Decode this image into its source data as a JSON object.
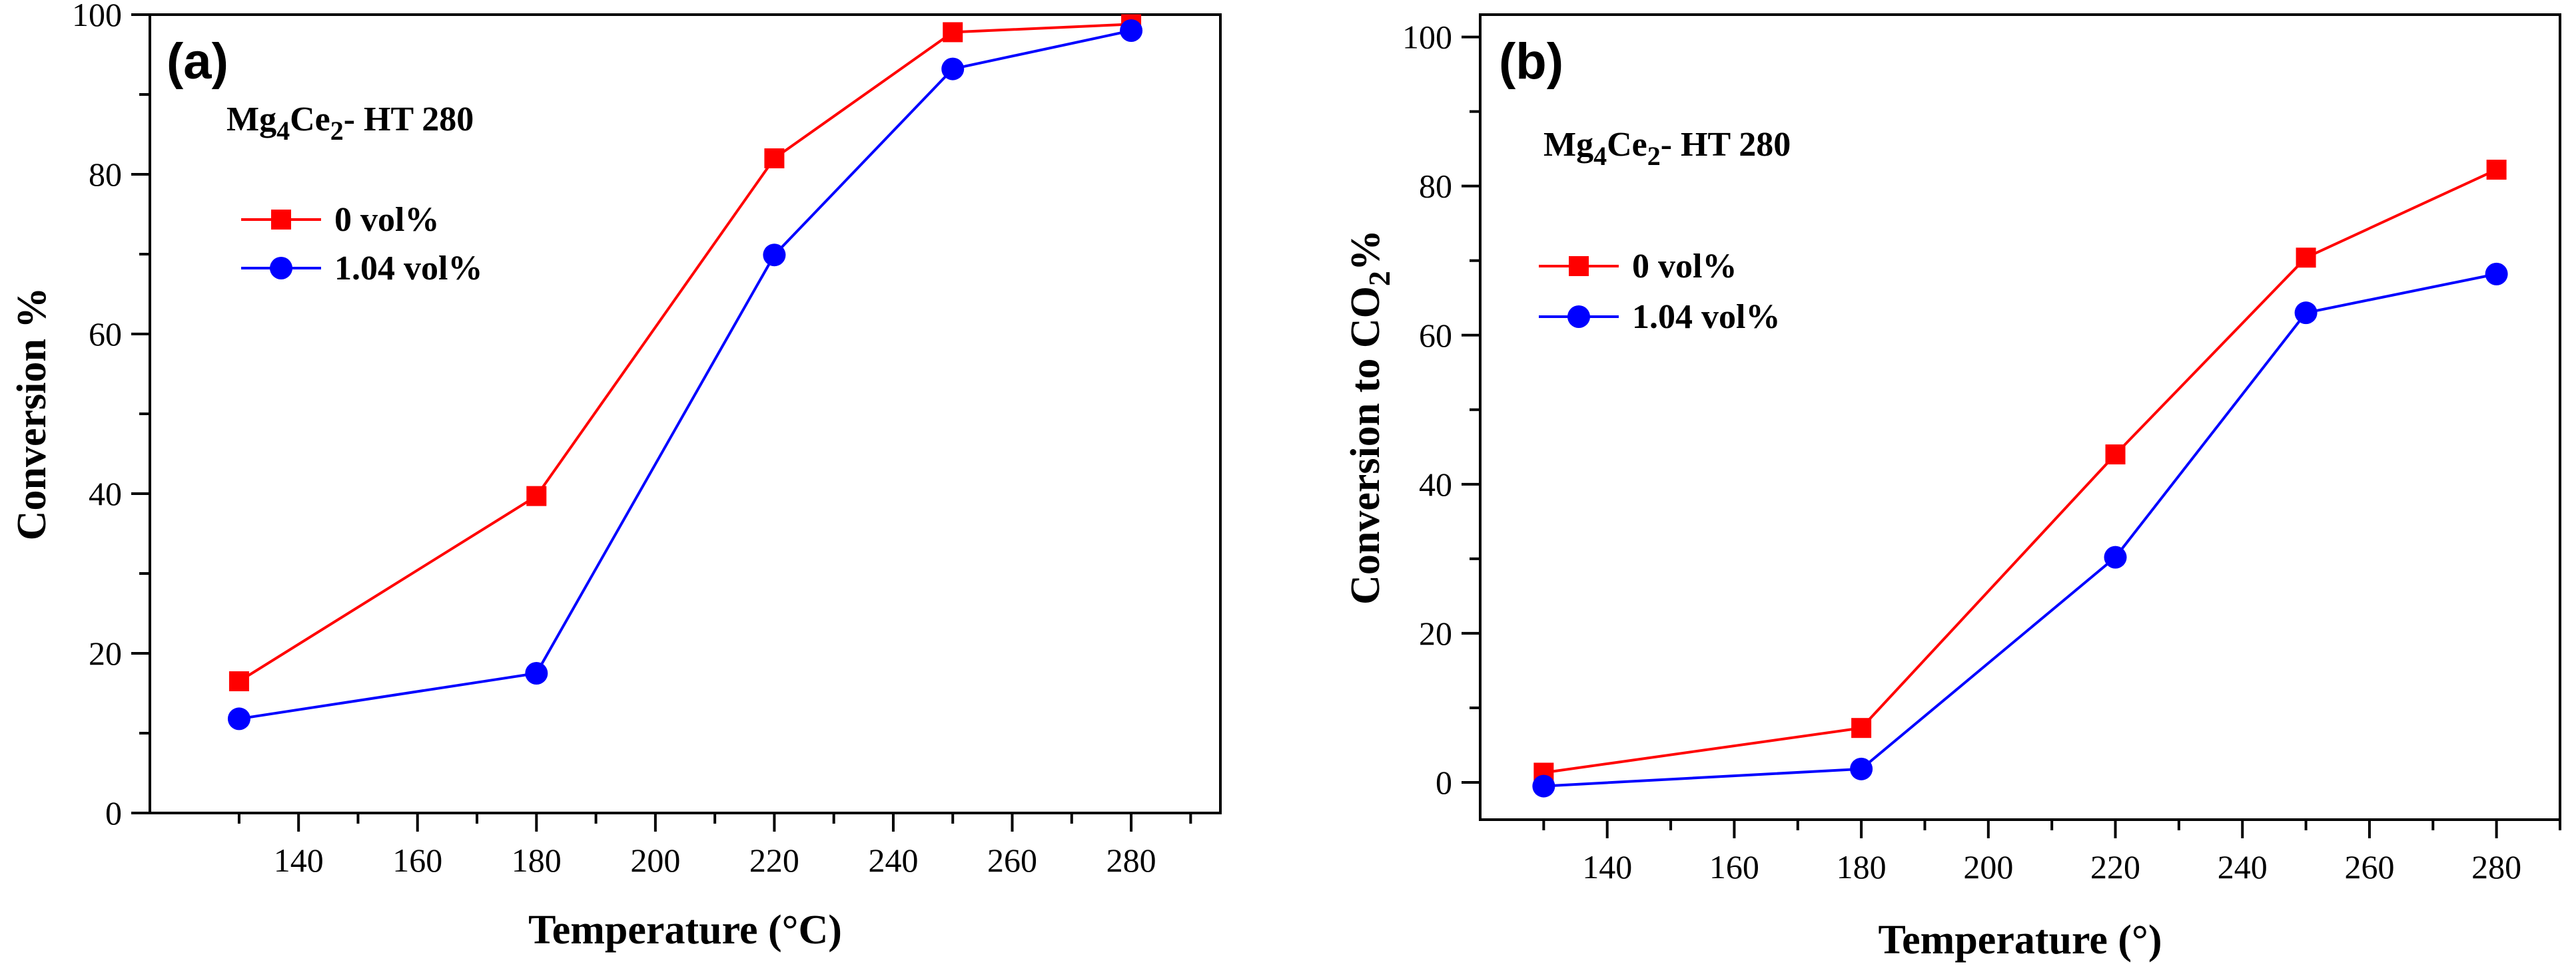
{
  "chart_data": [
    {
      "type": "line",
      "panel_label": "(a)",
      "sample_prefix": "Mg",
      "sample_sub1": "4",
      "sample_mid": "Ce",
      "sample_sub2": "2",
      "sample_suffix": "- HT 280",
      "xlabel": "Temperature (°C)",
      "ylabel": "Conversion %",
      "ylabel_sub": "",
      "ylabel_suffix": "",
      "xlim": [
        115,
        295
      ],
      "ylim": [
        0,
        100
      ],
      "xticks": [
        140,
        160,
        180,
        200,
        220,
        240,
        260,
        280
      ],
      "yticks": [
        0,
        20,
        40,
        60,
        80,
        100
      ],
      "legend_position": "upper-left",
      "series": [
        {
          "name": "0 vol%",
          "marker": "square",
          "color": "#ff0000",
          "x": [
            130,
            180,
            220,
            250,
            280
          ],
          "y": [
            16.5,
            39.7,
            82.0,
            97.8,
            98.8
          ]
        },
        {
          "name": "1.04 vol%",
          "marker": "circle",
          "color": "#0000ff",
          "x": [
            130,
            180,
            220,
            250,
            280
          ],
          "y": [
            11.8,
            17.5,
            69.9,
            93.2,
            98.0
          ]
        }
      ]
    },
    {
      "type": "line",
      "panel_label": "(b)",
      "sample_prefix": "Mg",
      "sample_sub1": "4",
      "sample_mid": "Ce",
      "sample_sub2": "2",
      "sample_suffix": "- HT 280",
      "xlabel": "Temperature (°)",
      "ylabel": "Conversion to CO",
      "ylabel_sub": "2",
      "ylabel_suffix": "%",
      "xlim": [
        120,
        290
      ],
      "ylim": [
        -5,
        103
      ],
      "xticks": [
        140,
        160,
        180,
        200,
        220,
        240,
        260,
        280
      ],
      "yticks": [
        0,
        20,
        40,
        60,
        80,
        100
      ],
      "legend_position": "upper-left",
      "series": [
        {
          "name": "0 vol%",
          "marker": "square",
          "color": "#ff0000",
          "x": [
            130,
            180,
            220,
            250,
            280
          ],
          "y": [
            1.3,
            7.3,
            44.0,
            70.4,
            82.2
          ]
        },
        {
          "name": "1.04 vol%",
          "marker": "circle",
          "color": "#0000ff",
          "x": [
            130,
            180,
            220,
            250,
            280
          ],
          "y": [
            -0.5,
            1.8,
            30.2,
            63.0,
            68.2
          ]
        }
      ]
    }
  ]
}
